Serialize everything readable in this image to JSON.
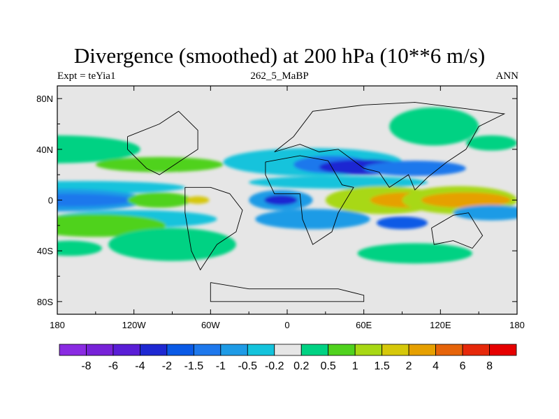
{
  "chart_data": {
    "type": "heatmap",
    "title": "Divergence (smoothed) at 200 hPa (10**6 m/s)",
    "subtitle_left": "Expt = teYia1",
    "subtitle_center": "262_5_MaBP",
    "subtitle_right": "ANN",
    "x_ticks": [
      "180",
      "120W",
      "60W",
      "0",
      "60E",
      "120E",
      "180"
    ],
    "x_tick_values": [
      -180,
      -120,
      -60,
      0,
      60,
      120,
      180
    ],
    "y_ticks": [
      "80N",
      "40N",
      "0",
      "40S",
      "80S"
    ],
    "y_tick_values": [
      80,
      40,
      0,
      -40,
      -80
    ],
    "xlim": [
      -180,
      180
    ],
    "ylim": [
      -90,
      90
    ],
    "colorbar": {
      "labels": [
        "-8",
        "-6",
        "-4",
        "-2",
        "-1.5",
        "-1",
        "-0.5",
        "-0.2",
        "0.2",
        "0.5",
        "1",
        "1.5",
        "2",
        "4",
        "6",
        "8"
      ],
      "colors": [
        "#8a2be2",
        "#7722d8",
        "#5a1ed6",
        "#1e28d2",
        "#0a5ae6",
        "#1e78ec",
        "#1e9be6",
        "#14c3dc",
        "#e6e6e6",
        "#00d283",
        "#50d21e",
        "#a8d814",
        "#d6c80a",
        "#e6a000",
        "#e6640a",
        "#e6280a",
        "#e60000"
      ]
    },
    "contour_regions": [
      {
        "level": "0.2 to 0.5",
        "lon": -180,
        "lat": 40,
        "width": 130,
        "height": 22
      },
      {
        "level": "0.5 to 1",
        "lon": -100,
        "lat": 28,
        "width": 100,
        "height": 12
      },
      {
        "level": "0.2 to 0.5",
        "lon": 115,
        "lat": 58,
        "width": 70,
        "height": 30
      },
      {
        "level": "0.2 to 0.5",
        "lon": 160,
        "lat": 45,
        "width": 40,
        "height": 12
      },
      {
        "level": "-0.2 to -0.5",
        "lon": 20,
        "lat": 30,
        "width": 140,
        "height": 22
      },
      {
        "level": "-1 to -1.5",
        "lon": 35,
        "lat": 28,
        "width": 60,
        "height": 14
      },
      {
        "level": "-2 to -4",
        "lon": 60,
        "lat": 26,
        "width": 70,
        "height": 12
      },
      {
        "level": "-1 to -1.5",
        "lon": 100,
        "lat": 25,
        "width": 80,
        "height": 12
      },
      {
        "level": "-0.2 to -0.5",
        "lon": -160,
        "lat": 10,
        "width": 160,
        "height": 10
      },
      {
        "level": "-0.2 to -0.5",
        "lon": 40,
        "lat": 14,
        "width": 140,
        "height": 10
      },
      {
        "level": "-0.5 to -1",
        "lon": -180,
        "lat": 0,
        "width": 140,
        "height": 18
      },
      {
        "level": "-1 to -1.5",
        "lon": -170,
        "lat": 0,
        "width": 100,
        "height": 10
      },
      {
        "level": "0.5 to 1",
        "lon": -100,
        "lat": 0,
        "width": 50,
        "height": 12
      },
      {
        "level": "1.5 to 2",
        "lon": -70,
        "lat": 0,
        "width": 18,
        "height": 6
      },
      {
        "level": "-0.5 to -1",
        "lon": -5,
        "lat": 0,
        "width": 50,
        "height": 16
      },
      {
        "level": "-2 to -4",
        "lon": -5,
        "lat": 0,
        "width": 26,
        "height": 8
      },
      {
        "level": "1 to 1.5",
        "lon": 75,
        "lat": 0,
        "width": 90,
        "height": 22
      },
      {
        "level": "2 to 4",
        "lon": 95,
        "lat": 0,
        "width": 60,
        "height": 12
      },
      {
        "level": "1 to 1.5",
        "lon": 135,
        "lat": 0,
        "width": 90,
        "height": 22
      },
      {
        "level": "2 to 4",
        "lon": 140,
        "lat": 0,
        "width": 70,
        "height": 12
      },
      {
        "level": "-0.5 to -1",
        "lon": 20,
        "lat": -15,
        "width": 90,
        "height": 16
      },
      {
        "level": "-0.5 to -1",
        "lon": 160,
        "lat": -10,
        "width": 60,
        "height": 12
      },
      {
        "level": "-1.5 to -2",
        "lon": 90,
        "lat": -18,
        "width": 40,
        "height": 10
      },
      {
        "level": "-0.2 to -0.5",
        "lon": -120,
        "lat": -15,
        "width": 130,
        "height": 14
      },
      {
        "level": "0.5 to 1",
        "lon": -150,
        "lat": -20,
        "width": 110,
        "height": 18
      },
      {
        "level": "0.2 to 0.5",
        "lon": -90,
        "lat": -35,
        "width": 100,
        "height": 26
      },
      {
        "level": "0.2 to 0.5",
        "lon": 100,
        "lat": -42,
        "width": 90,
        "height": 16
      },
      {
        "level": "0.2 to 0.5",
        "lon": -170,
        "lat": -38,
        "width": 50,
        "height": 12
      }
    ],
    "coastlines": [
      {
        "name": "north-america-outline",
        "points": [
          [
            -125,
            50
          ],
          [
            -100,
            60
          ],
          [
            -85,
            70
          ],
          [
            -70,
            55
          ],
          [
            -70,
            40
          ],
          [
            -85,
            30
          ],
          [
            -100,
            20
          ],
          [
            -110,
            25
          ],
          [
            -125,
            40
          ],
          [
            -125,
            50
          ]
        ]
      },
      {
        "name": "south-america-outline",
        "points": [
          [
            -80,
            10
          ],
          [
            -60,
            10
          ],
          [
            -45,
            5
          ],
          [
            -35,
            -8
          ],
          [
            -40,
            -25
          ],
          [
            -55,
            -35
          ],
          [
            -68,
            -55
          ],
          [
            -75,
            -40
          ],
          [
            -80,
            -10
          ],
          [
            -80,
            10
          ]
        ]
      },
      {
        "name": "europe-asia-outline",
        "points": [
          [
            -10,
            38
          ],
          [
            5,
            50
          ],
          [
            20,
            70
          ],
          [
            60,
            75
          ],
          [
            100,
            77
          ],
          [
            140,
            72
          ],
          [
            170,
            68
          ],
          [
            150,
            58
          ],
          [
            140,
            40
          ],
          [
            125,
            30
          ],
          [
            110,
            18
          ],
          [
            100,
            8
          ],
          [
            95,
            20
          ],
          [
            80,
            10
          ],
          [
            72,
            22
          ],
          [
            60,
            25
          ],
          [
            40,
            40
          ],
          [
            25,
            38
          ],
          [
            10,
            44
          ],
          [
            -10,
            38
          ]
        ]
      },
      {
        "name": "africa-outline",
        "points": [
          [
            -17,
            30
          ],
          [
            10,
            35
          ],
          [
            32,
            31
          ],
          [
            43,
            12
          ],
          [
            52,
            10
          ],
          [
            40,
            -10
          ],
          [
            35,
            -25
          ],
          [
            20,
            -35
          ],
          [
            12,
            -15
          ],
          [
            10,
            5
          ],
          [
            -10,
            5
          ],
          [
            -17,
            20
          ],
          [
            -17,
            30
          ]
        ]
      },
      {
        "name": "australia-outline",
        "points": [
          [
            113,
            -22
          ],
          [
            130,
            -12
          ],
          [
            142,
            -10
          ],
          [
            153,
            -28
          ],
          [
            145,
            -38
          ],
          [
            130,
            -32
          ],
          [
            115,
            -35
          ],
          [
            113,
            -22
          ]
        ]
      },
      {
        "name": "antarctica-outline",
        "points": [
          [
            -60,
            -65
          ],
          [
            -30,
            -70
          ],
          [
            0,
            -70
          ],
          [
            40,
            -70
          ],
          [
            60,
            -75
          ],
          [
            60,
            -80
          ],
          [
            -60,
            -80
          ],
          [
            -60,
            -65
          ]
        ]
      }
    ]
  }
}
